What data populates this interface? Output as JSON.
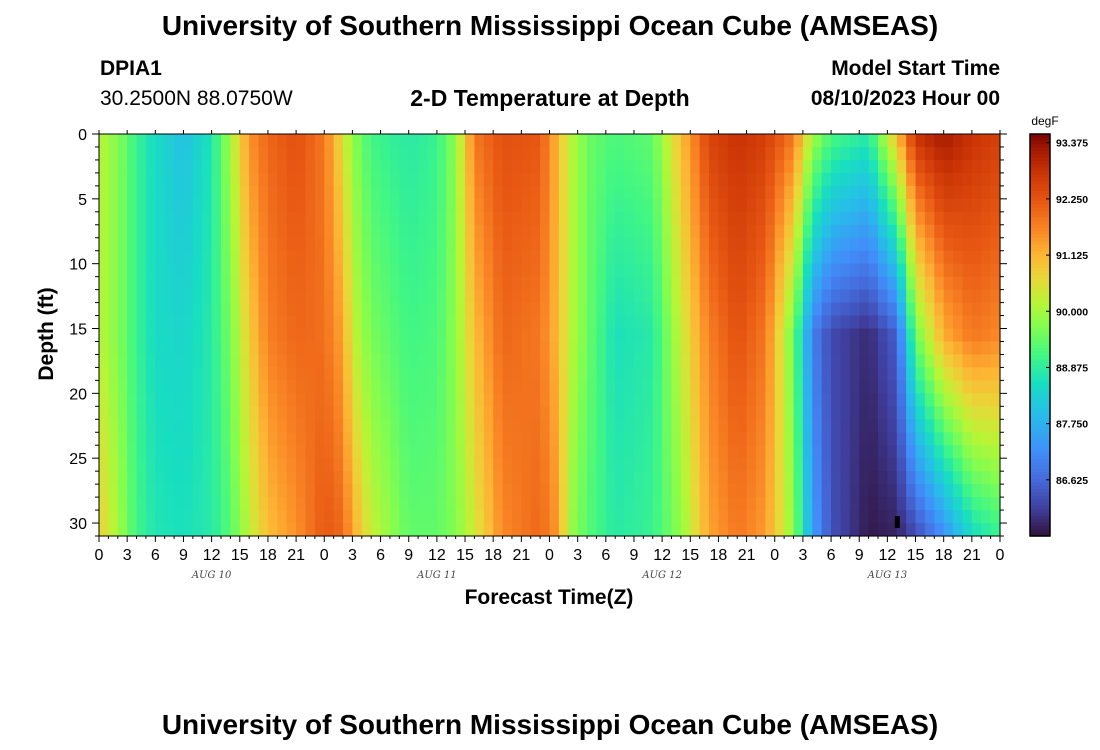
{
  "header": {
    "title": "University of Southern Mississippi Ocean Cube (AMSEAS)",
    "station_id": "DPIA1",
    "coordinates": "30.2500N  88.0750W",
    "plot_title": "2-D Temperature at Depth",
    "model_label": "Model Start Time",
    "model_time": "08/10/2023 Hour 00"
  },
  "footer": {
    "title": "University of Southern Mississippi Ocean Cube (AMSEAS)"
  },
  "chart_data": {
    "type": "heatmap",
    "title": "2-D Temperature at Depth",
    "xlabel": "Forecast Time(Z)",
    "ylabel": "Depth (ft)",
    "ylim": [
      0,
      31
    ],
    "y_ticks": [
      0,
      5,
      10,
      15,
      20,
      25,
      30
    ],
    "x_range_hours": [
      0,
      96
    ],
    "x_tick_labels": [
      "0",
      "3",
      "6",
      "9",
      "12",
      "15",
      "18",
      "21",
      "0",
      "3",
      "6",
      "9",
      "12",
      "15",
      "18",
      "21",
      "0",
      "3",
      "6",
      "9",
      "12",
      "15",
      "18",
      "21",
      "0",
      "3",
      "6",
      "9",
      "12",
      "15",
      "18",
      "21",
      "0"
    ],
    "date_labels": [
      "AUG 10",
      "AUG 11",
      "AUG 12",
      "AUG 13"
    ],
    "colorbar": {
      "unit": "degF",
      "min": 85.5,
      "max": 93.55,
      "tick_labels": [
        "93.375",
        "92.250",
        "91.125",
        "90.000",
        "88.875",
        "87.750",
        "86.625"
      ]
    },
    "depth_profiles": [
      {
        "hour": 0,
        "surface": 90.2,
        "mid": 90.2,
        "bottom": 90.8
      },
      {
        "hour": 2,
        "surface": 89.7,
        "mid": 89.7,
        "bottom": 90.0
      },
      {
        "hour": 4,
        "surface": 89.0,
        "mid": 89.0,
        "bottom": 89.1
      },
      {
        "hour": 6,
        "surface": 88.5,
        "mid": 88.5,
        "bottom": 88.7
      },
      {
        "hour": 9,
        "surface": 88.0,
        "mid": 88.4,
        "bottom": 88.6
      },
      {
        "hour": 12,
        "surface": 88.7,
        "mid": 88.8,
        "bottom": 88.8
      },
      {
        "hour": 14,
        "surface": 90.0,
        "mid": 89.6,
        "bottom": 89.3
      },
      {
        "hour": 16,
        "surface": 91.5,
        "mid": 90.8,
        "bottom": 90.2
      },
      {
        "hour": 18,
        "surface": 92.0,
        "mid": 91.7,
        "bottom": 91.0
      },
      {
        "hour": 21,
        "surface": 92.3,
        "mid": 92.0,
        "bottom": 91.5
      },
      {
        "hour": 24,
        "surface": 91.8,
        "mid": 91.9,
        "bottom": 92.2
      },
      {
        "hour": 26,
        "surface": 90.5,
        "mid": 91.3,
        "bottom": 92.0
      },
      {
        "hour": 27,
        "surface": 89.8,
        "mid": 90.3,
        "bottom": 91.3
      },
      {
        "hour": 29,
        "surface": 89.1,
        "mid": 89.6,
        "bottom": 90.3
      },
      {
        "hour": 33,
        "surface": 88.8,
        "mid": 89.1,
        "bottom": 89.4
      },
      {
        "hour": 36,
        "surface": 89.0,
        "mid": 89.2,
        "bottom": 89.4
      },
      {
        "hour": 38,
        "surface": 89.8,
        "mid": 89.8,
        "bottom": 89.7
      },
      {
        "hour": 40,
        "surface": 91.8,
        "mid": 91.0,
        "bottom": 90.4
      },
      {
        "hour": 43,
        "surface": 92.3,
        "mid": 92.0,
        "bottom": 91.6
      },
      {
        "hour": 47,
        "surface": 92.2,
        "mid": 91.8,
        "bottom": 92.0
      },
      {
        "hour": 49,
        "surface": 91.0,
        "mid": 91.0,
        "bottom": 91.4
      },
      {
        "hour": 50,
        "surface": 90.3,
        "mid": 90.3,
        "bottom": 90.0
      },
      {
        "hour": 52,
        "surface": 89.5,
        "mid": 89.5,
        "bottom": 89.3
      },
      {
        "hour": 55,
        "surface": 89.2,
        "mid": 88.6,
        "bottom": 88.8
      },
      {
        "hour": 59,
        "surface": 89.4,
        "mid": 88.8,
        "bottom": 89.0
      },
      {
        "hour": 62,
        "surface": 91.0,
        "mid": 90.3,
        "bottom": 89.8
      },
      {
        "hour": 65,
        "surface": 92.5,
        "mid": 91.7,
        "bottom": 91.3
      },
      {
        "hour": 68,
        "surface": 92.8,
        "mid": 92.3,
        "bottom": 91.8
      },
      {
        "hour": 71,
        "surface": 92.6,
        "mid": 91.8,
        "bottom": 91.4
      },
      {
        "hour": 74,
        "surface": 91.8,
        "mid": 89.5,
        "bottom": 89.8
      },
      {
        "hour": 76,
        "surface": 90.0,
        "mid": 87.0,
        "bottom": 87.5
      },
      {
        "hour": 78,
        "surface": 89.2,
        "mid": 86.2,
        "bottom": 86.3
      },
      {
        "hour": 82,
        "surface": 88.8,
        "mid": 85.8,
        "bottom": 85.6
      },
      {
        "hour": 85,
        "surface": 91.0,
        "mid": 86.5,
        "bottom": 85.7
      },
      {
        "hour": 87,
        "surface": 92.8,
        "mid": 89.5,
        "bottom": 86.2
      },
      {
        "hour": 90,
        "surface": 93.2,
        "mid": 91.2,
        "bottom": 87.2
      },
      {
        "hour": 93,
        "surface": 92.8,
        "mid": 91.8,
        "bottom": 88.5
      },
      {
        "hour": 96,
        "surface": 92.6,
        "mid": 91.6,
        "bottom": 89.0
      }
    ],
    "marker": {
      "hour": 85,
      "depth": 30
    }
  }
}
